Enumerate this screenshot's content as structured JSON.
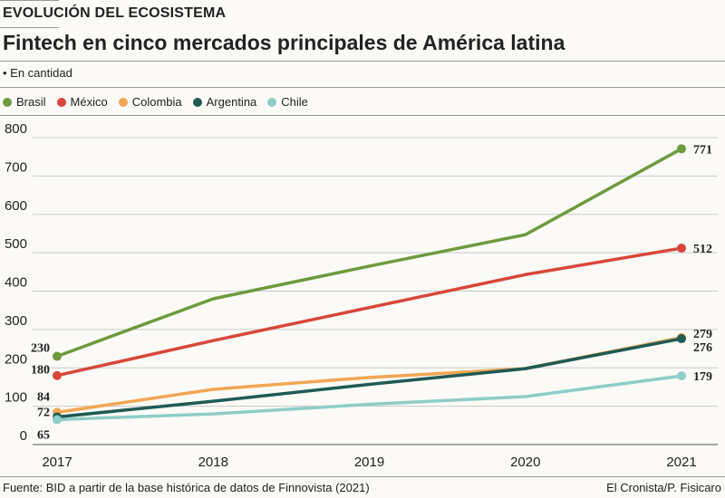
{
  "header": {
    "kicker": "EVOLUCIÓN DEL ECOSISTEMA",
    "title": "Fintech en cinco mercados principales de América latina",
    "unit": "• En cantidad"
  },
  "footer": {
    "source": "Fuente: BID a partir de la base histórica de datos de Finnovista (2021)",
    "credit": "El Cronista/P. Fisicaro"
  },
  "chart_data": {
    "type": "line",
    "title": "Fintech en cinco mercados principales de América latina",
    "ylabel": "",
    "xlabel": "",
    "x": [
      "2017",
      "2018",
      "2019",
      "2020",
      "2021"
    ],
    "ylim": [
      0,
      800
    ],
    "yticks": [
      0,
      100,
      200,
      300,
      400,
      500,
      600,
      700,
      800
    ],
    "grid": true,
    "legend": "top-left",
    "series": [
      {
        "name": "Brasil",
        "color": "#6e9a3e",
        "values": [
          230,
          380,
          465,
          547,
          771
        ]
      },
      {
        "name": "México",
        "color": "#d9473a",
        "values": [
          180,
          271,
          357,
          443,
          512
        ]
      },
      {
        "name": "Colombia",
        "color": "#f2a654",
        "values": [
          84,
          144,
          175,
          198,
          279
        ]
      },
      {
        "name": "Argentina",
        "color": "#1f5a55",
        "values": [
          72,
          113,
          157,
          198,
          276
        ]
      },
      {
        "name": "Chile",
        "color": "#8fcdc7",
        "values": [
          65,
          80,
          105,
          125,
          179
        ]
      }
    ],
    "labeled_points": "first-and-last"
  }
}
